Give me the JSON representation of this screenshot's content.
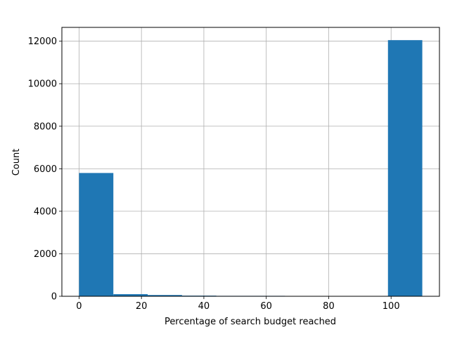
{
  "chart_data": {
    "type": "bar",
    "xlabel": "Percentage of search budget reached",
    "ylabel": "Count",
    "xlim": [
      -5.5,
      115.5
    ],
    "ylim": [
      0,
      12650
    ],
    "grid": true,
    "bar_color": "#1f77b4",
    "grid_color": "#b0b0b0",
    "x_ticks": [
      0,
      20,
      40,
      60,
      80,
      100
    ],
    "y_ticks": [
      0,
      2000,
      4000,
      6000,
      8000,
      10000,
      12000
    ],
    "bins": [
      {
        "x0": 0,
        "x1": 11,
        "value": 5800
      },
      {
        "x0": 11,
        "x1": 22,
        "value": 100
      },
      {
        "x0": 22,
        "x1": 33,
        "value": 60
      },
      {
        "x0": 33,
        "x1": 44,
        "value": 30
      },
      {
        "x0": 44,
        "x1": 55,
        "value": 20
      },
      {
        "x0": 55,
        "x1": 66,
        "value": 20
      },
      {
        "x0": 66,
        "x1": 77,
        "value": 15
      },
      {
        "x0": 77,
        "x1": 88,
        "value": 15
      },
      {
        "x0": 88,
        "x1": 99,
        "value": 15
      },
      {
        "x0": 99,
        "x1": 110,
        "value": 12050
      }
    ]
  }
}
